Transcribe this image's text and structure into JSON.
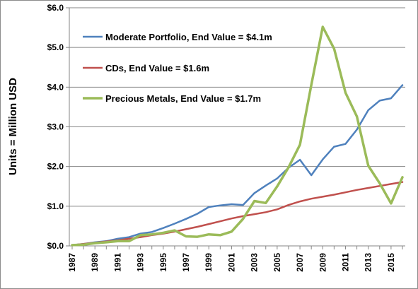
{
  "chart_data": {
    "type": "line",
    "title": "",
    "xlabel": "",
    "ylabel": "Units = Million USD",
    "x": [
      1987,
      1988,
      1989,
      1990,
      1991,
      1992,
      1993,
      1994,
      1995,
      1996,
      1997,
      1998,
      1999,
      2000,
      2001,
      2002,
      2003,
      2004,
      2005,
      2006,
      2007,
      2008,
      2009,
      2010,
      2011,
      2012,
      2013,
      2014,
      2015,
      2016
    ],
    "x_tick_labels": [
      "1987",
      "1989",
      "1991",
      "1993",
      "1995",
      "1997",
      "1999",
      "2001",
      "2003",
      "2005",
      "2007",
      "2009",
      "2011",
      "2013",
      "2015"
    ],
    "y_tick_labels": [
      "$0.0",
      "$1.0",
      "$2.0",
      "$3.0",
      "$4.0",
      "$5.0",
      "$6.0"
    ],
    "ylim": [
      0,
      6
    ],
    "xlim": [
      1987,
      2016
    ],
    "grid": "horizontal",
    "legend_position": "top-left",
    "series": [
      {
        "name": "Moderate Portfolio, End Value = $4.1m",
        "color": "#4f81bd",
        "values": [
          0.02,
          0.05,
          0.09,
          0.12,
          0.18,
          0.22,
          0.31,
          0.35,
          0.45,
          0.56,
          0.68,
          0.81,
          0.98,
          1.02,
          1.05,
          1.03,
          1.33,
          1.52,
          1.7,
          1.97,
          2.17,
          1.78,
          2.18,
          2.5,
          2.57,
          2.93,
          3.42,
          3.66,
          3.72,
          4.05
        ]
      },
      {
        "name": "CDs, End Value = $1.6m",
        "color": "#c0504d",
        "values": [
          0.02,
          0.05,
          0.08,
          0.11,
          0.14,
          0.18,
          0.22,
          0.27,
          0.31,
          0.36,
          0.42,
          0.48,
          0.55,
          0.62,
          0.69,
          0.75,
          0.8,
          0.85,
          0.92,
          1.03,
          1.12,
          1.19,
          1.24,
          1.29,
          1.35,
          1.41,
          1.46,
          1.51,
          1.56,
          1.61
        ]
      },
      {
        "name": "Precious Metals, End Value = $1.7m",
        "color": "#9bbb59",
        "values": [
          0.02,
          0.03,
          0.07,
          0.09,
          0.12,
          0.12,
          0.27,
          0.29,
          0.33,
          0.39,
          0.24,
          0.23,
          0.29,
          0.27,
          0.36,
          0.68,
          1.13,
          1.08,
          1.5,
          1.98,
          2.55,
          4.06,
          5.52,
          4.97,
          3.86,
          3.26,
          2.02,
          1.58,
          1.07,
          1.73
        ]
      }
    ]
  }
}
